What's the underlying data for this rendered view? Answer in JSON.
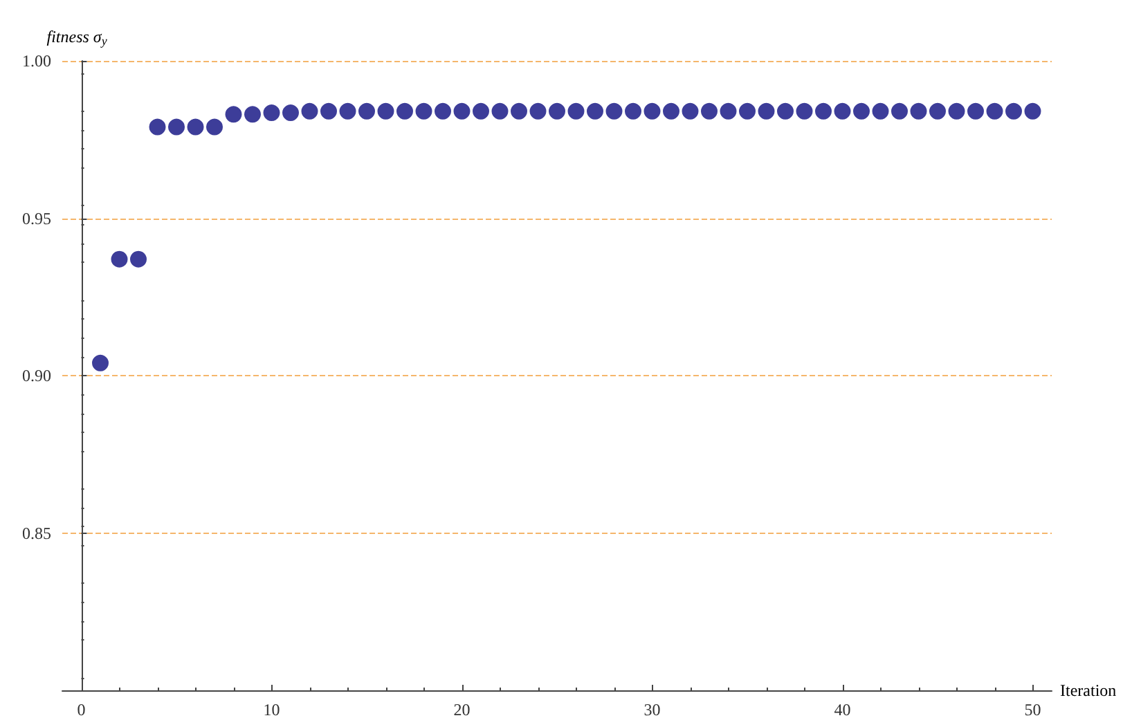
{
  "chart_data": {
    "type": "scatter",
    "xlabel": "Iteration",
    "ylabel": "fitness σ$_{y}$",
    "x": [
      1,
      2,
      3,
      4,
      5,
      6,
      7,
      8,
      9,
      10,
      11,
      12,
      13,
      14,
      15,
      16,
      17,
      18,
      19,
      20,
      21,
      22,
      23,
      24,
      25,
      26,
      27,
      28,
      29,
      30,
      31,
      32,
      33,
      34,
      35,
      36,
      37,
      38,
      39,
      40,
      41,
      42,
      43,
      44,
      45,
      46,
      47,
      48,
      49,
      50
    ],
    "series": [
      {
        "color": "#3d3d99",
        "values": [
          0.904,
          0.937,
          0.937,
          0.979,
          0.979,
          0.979,
          0.979,
          0.983,
          0.983,
          0.9835,
          0.9835,
          0.984,
          0.984,
          0.984,
          0.984,
          0.984,
          0.984,
          0.984,
          0.984,
          0.984,
          0.984,
          0.984,
          0.984,
          0.984,
          0.984,
          0.984,
          0.984,
          0.984,
          0.984,
          0.984,
          0.984,
          0.984,
          0.984,
          0.984,
          0.984,
          0.984,
          0.984,
          0.984,
          0.984,
          0.984,
          0.984,
          0.984,
          0.984,
          0.984,
          0.984,
          0.984,
          0.984,
          0.984,
          0.984,
          0.984
        ]
      }
    ],
    "xlim": [
      -1,
      51
    ],
    "xticks": [
      0,
      10,
      20,
      30,
      40,
      50
    ],
    "ylim": [
      0.8,
      1.0
    ],
    "yticks": [
      0.85,
      {
        "value": 0.9,
        "label": "0.90"
      },
      0.95,
      {
        "value": 1.0,
        "label": "1.00"
      }
    ],
    "grid": "y",
    "marker": "circle"
  }
}
